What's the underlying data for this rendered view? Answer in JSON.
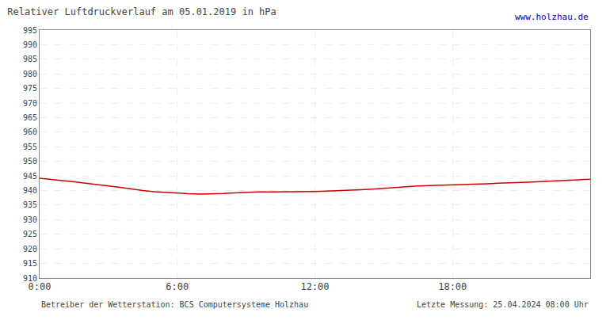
{
  "chart_data": {
    "type": "line",
    "title": "Relativer Luftdruckverlauf am 05.01.2019 in hPa",
    "annotations": [
      "www.holzhau.de",
      "Betreiber der Wetterstation: BCS Computersysteme Holzhau",
      "Letzte Messung: 25.04.2024 08:00 Uhr"
    ],
    "x": [
      0,
      30,
      60,
      90,
      120,
      150,
      180,
      210,
      240,
      270,
      300,
      330,
      360,
      390,
      420,
      450,
      480,
      510,
      540,
      570,
      600,
      630,
      660,
      690,
      720,
      750,
      780,
      810,
      840,
      870,
      900,
      930,
      960,
      990,
      1020,
      1050,
      1080,
      1110,
      1140,
      1170,
      1200,
      1230,
      1260,
      1290,
      1320,
      1350,
      1380,
      1410,
      1440
    ],
    "values": [
      944.2,
      943.9,
      943.4,
      943.0,
      942.6,
      942.1,
      941.6,
      941.1,
      940.5,
      940.0,
      939.6,
      939.3,
      939.0,
      938.9,
      938.8,
      938.8,
      939.0,
      939.2,
      939.4,
      939.5,
      939.5,
      939.5,
      939.6,
      939.7,
      939.7,
      939.8,
      939.9,
      940.1,
      940.3,
      940.5,
      940.8,
      941.1,
      941.4,
      941.6,
      941.7,
      941.8,
      941.8,
      941.9,
      942.1,
      942.3,
      942.5,
      942.6,
      942.7,
      942.9,
      943.1,
      943.3,
      943.5,
      943.7,
      943.9
    ],
    "color": "#cc0000",
    "xlim": [
      0,
      1440
    ],
    "xticks": [
      {
        "value": 0,
        "label": "0:00"
      },
      {
        "value": 360,
        "label": "6:00"
      },
      {
        "value": 720,
        "label": "12:00"
      },
      {
        "value": 1080,
        "label": "18:00"
      }
    ],
    "ylim": [
      910,
      995
    ],
    "yticks": [
      910,
      915,
      920,
      925,
      930,
      935,
      940,
      945,
      950,
      955,
      960,
      965,
      970,
      975,
      980,
      985,
      990,
      995
    ],
    "grid": true
  }
}
